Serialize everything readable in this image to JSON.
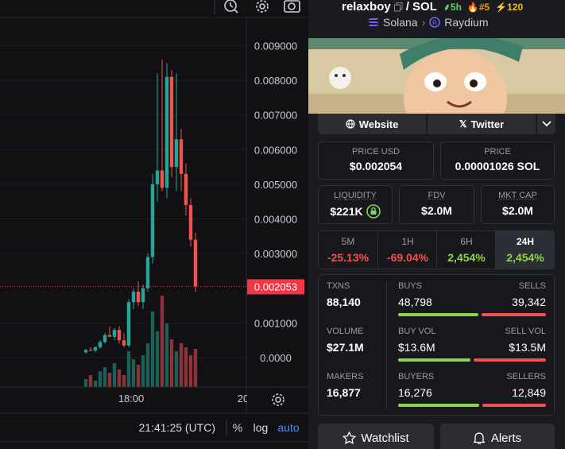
{
  "chart": {
    "type": "candlestick",
    "ylim": [
      -0.00085,
      0.01032
    ],
    "yticks": [
      {
        "value": 0.009,
        "label": "0.009000"
      },
      {
        "value": 0.008,
        "label": "0.008000"
      },
      {
        "value": 0.007,
        "label": "0.007000"
      },
      {
        "value": 0.006,
        "label": "0.006000"
      },
      {
        "value": 0.005,
        "label": "0.005000"
      },
      {
        "value": 0.004,
        "label": "0.004000"
      },
      {
        "value": 0.003,
        "label": "0.003000"
      },
      {
        "value": 0.001,
        "label": "0.001000"
      },
      {
        "value": 0,
        "label": "0.0000"
      }
    ],
    "current_price": {
      "value": 0.002053,
      "label": "0.002053"
    },
    "xticks": [
      "18:00",
      "20"
    ],
    "candles": {
      "open": [
        0.00015,
        0.00022,
        0.0002,
        0.0003,
        0.00045,
        0.00065,
        0.0006,
        0.0008,
        0.0005,
        0.00035,
        0.0016,
        0.0019,
        0.0016,
        0.002,
        0.0029,
        0.005,
        0.0054,
        0.0049,
        0.0081,
        0.0055,
        0.0063,
        0.0053,
        0.0044,
        0.0034
      ],
      "high": [
        0.00025,
        0.0003,
        0.00032,
        0.0005,
        0.0007,
        0.0009,
        0.00085,
        0.0009,
        0.0007,
        0.0017,
        0.002,
        0.0022,
        0.0021,
        0.003,
        0.0053,
        0.0082,
        0.0086,
        0.0085,
        0.0083,
        0.0082,
        0.0066,
        0.0056,
        0.0046,
        0.0036
      ],
      "low": [
        0.00012,
        0.00018,
        0.00015,
        0.00025,
        0.0004,
        0.0006,
        0.0005,
        0.0004,
        0.0003,
        0.0003,
        0.0014,
        0.0015,
        0.0014,
        0.0019,
        0.0027,
        0.0045,
        0.0048,
        0.0046,
        0.0052,
        0.0048,
        0.0048,
        0.0041,
        0.0032,
        0.0019
      ],
      "close": [
        0.00022,
        0.0002,
        0.0003,
        0.00045,
        0.00065,
        0.0006,
        0.0008,
        0.0005,
        0.00035,
        0.0016,
        0.0019,
        0.0016,
        0.002,
        0.0029,
        0.005,
        0.0054,
        0.0049,
        0.0081,
        0.0055,
        0.0063,
        0.0053,
        0.0044,
        0.0034,
        0.002053
      ]
    },
    "volume": [
      10,
      15,
      8,
      20,
      25,
      18,
      30,
      22,
      15,
      45,
      35,
      28,
      40,
      55,
      95,
      70,
      115,
      80,
      60,
      45,
      55,
      50,
      40,
      48
    ],
    "vlim": [
      0,
      130
    ],
    "clock": "21:41:25 (UTC)",
    "scale_options": [
      "%",
      "log",
      "auto"
    ]
  },
  "pair": {
    "name": "relaxboy",
    "quote": "/ SOL",
    "age": "5h",
    "rank": "#5",
    "boosts": "120",
    "chain": "Solana",
    "dex": "Raydium"
  },
  "links": [
    "Website",
    "Twitter"
  ],
  "prices": [
    {
      "label": "PRICE USD",
      "value": "$0.002054"
    },
    {
      "label": "PRICE",
      "value": "0.00001026 SOL"
    }
  ],
  "metrics": [
    {
      "label": "LIQUIDITY",
      "value": "$221K"
    },
    {
      "label": "FDV",
      "value": "$2.0M"
    },
    {
      "label": "MKT CAP",
      "value": "$2.0M"
    }
  ],
  "periods": [
    {
      "label": "5M",
      "change": "-25.13%"
    },
    {
      "label": "1H",
      "change": "-69.04%"
    },
    {
      "label": "6H",
      "change": "2,454%"
    },
    {
      "label": "24H",
      "change": "2,454%"
    }
  ],
  "stats": [
    {
      "total": {
        "label": "TXNS",
        "value": "88,140"
      },
      "left": {
        "label": "BUYS",
        "value": "48,798"
      },
      "right": {
        "label": "SELLS",
        "value": "39,342"
      }
    },
    {
      "total": {
        "label": "VOLUME",
        "value": "$27.1M"
      },
      "left": {
        "label": "BUY VOL",
        "value": "$13.6M"
      },
      "right": {
        "label": "SELL VOL",
        "value": "$13.5M"
      }
    },
    {
      "total": {
        "label": "MAKERS",
        "value": "16,877"
      },
      "left": {
        "label": "BUYERS",
        "value": "16,276"
      },
      "right": {
        "label": "SELLERS",
        "value": "12,849"
      }
    }
  ],
  "buttons": [
    "Watchlist",
    "Alerts"
  ]
}
